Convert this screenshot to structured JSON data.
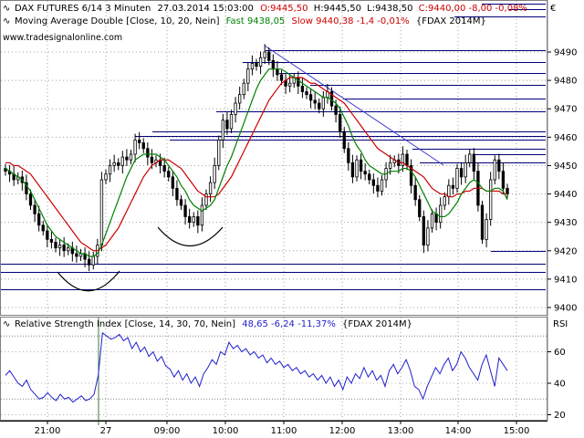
{
  "main": {
    "line1": {
      "symbol": "DAX FUTURES 6/14 3 Minuten",
      "datetime": "27.03.2014 15:03:00",
      "open": "O:9445,50",
      "high": "H:9445,50",
      "low": "L:9438,50",
      "close_change": "C:9440,00 -8,00 -0,08%"
    },
    "line2": {
      "indicator": "Moving Average Double [Close, 10, 20, Nein]",
      "fast": "Fast 9438,05",
      "slow": "Slow 9440,38 -1,4 -0,01%",
      "instrument": "{FDAX 2014M}"
    },
    "watermark": "www.tradesignalonline.com",
    "currency": "€",
    "y_ticks": [
      "9490",
      "9480",
      "9470",
      "9460",
      "9450",
      "9440",
      "9430",
      "9420",
      "9410",
      "9400"
    ]
  },
  "rsi": {
    "label": "Relative Strength Index [Close, 14, 30, 70, Nein]",
    "value": "48,65 -6,24 -11,37%",
    "instrument": "{FDAX 2014M}",
    "axis_label": "RSI",
    "y_ticks": [
      "60",
      "40",
      "20"
    ]
  },
  "x_ticks": [
    "21:00",
    "27",
    "09:00",
    "10:00",
    "11:00",
    "12:00",
    "13:00",
    "14:00",
    "15:00"
  ],
  "colors": {
    "fast": "#008000",
    "slow": "#cc0000",
    "rsi": "#1f1fcc",
    "lines": "#00007a",
    "close_change": "#cc0000",
    "value_blue": "#1f1fcc"
  },
  "chart_data": [
    {
      "type": "candlestick",
      "title": "DAX FUTURES 6/14 3 Minuten",
      "ylim": [
        9395,
        9497
      ],
      "series": [
        {
          "name": "Close",
          "values": [
            9448,
            9447,
            9445,
            9446,
            9444,
            9440,
            9436,
            9433,
            9429,
            9427,
            9424,
            9423,
            9421,
            9422,
            9420,
            9421,
            9419,
            9418,
            9419,
            9417,
            9415,
            9418,
            9422,
            9445,
            9447,
            9450,
            9451,
            9450,
            9453,
            9452,
            9454,
            9459,
            9458,
            9456,
            9453,
            9451,
            9452,
            9450,
            9448,
            9446,
            9442,
            9438,
            9436,
            9432,
            9430,
            9432,
            9429,
            9436,
            9440,
            9444,
            9450,
            9459,
            9466,
            9463,
            9468,
            9472,
            9475,
            9479,
            9484,
            9486,
            9485,
            9488,
            9490,
            9487,
            9484,
            9482,
            9480,
            9478,
            9479,
            9481,
            9478,
            9476,
            9475,
            9473,
            9472,
            9470,
            9474,
            9476,
            9471,
            9468,
            9462,
            9456,
            9451,
            9446,
            9452,
            9448,
            9447,
            9445,
            9443,
            9441,
            9445,
            9449,
            9451,
            9452,
            9450,
            9454,
            9450,
            9443,
            9438,
            9432,
            9422,
            9428,
            9433,
            9430,
            9436,
            9439,
            9443,
            9442,
            9449,
            9446,
            9451,
            9454,
            9448,
            9436,
            9424,
            9431,
            9445,
            9452,
            9448,
            9442,
            9440
          ]
        },
        {
          "name": "Fast",
          "values": [
            9449,
            9448,
            9447,
            9446,
            9445,
            9443,
            9441,
            9438,
            9435,
            9432,
            9429,
            9427,
            9425,
            9424,
            9423,
            9422,
            9421,
            9420,
            9419,
            9419,
            9418,
            9418,
            9419,
            9422,
            9426,
            9430,
            9434,
            9438,
            9442,
            9446,
            9449,
            9452,
            9453,
            9454,
            9454,
            9454,
            9454,
            9453,
            9452,
            9450,
            9448,
            9446,
            9443,
            9441,
            9438,
            9436,
            9435,
            9434,
            9435,
            9436,
            9438,
            9442,
            9446,
            9450,
            9453,
            9457,
            9461,
            9465,
            9469,
            9473,
            9477,
            9480,
            9482,
            9484,
            9484,
            9484,
            9484,
            9483,
            9482,
            9481,
            9480,
            9479,
            9478,
            9477,
            9476,
            9475,
            9474,
            9474,
            9473,
            9472,
            9470,
            9467,
            9464,
            9460,
            9457,
            9455,
            9452,
            9450,
            9449,
            9448,
            9447,
            9447,
            9448,
            9448,
            9448,
            9449,
            9449,
            9448,
            9446,
            9443,
            9440,
            9437,
            9434,
            9433,
            9432,
            9432,
            9433,
            9435,
            9437,
            9440,
            9442,
            9444,
            9445,
            9444,
            9442,
            9441,
            9441,
            9442,
            9442,
            9441,
            9438
          ]
        },
        {
          "name": "Slow",
          "values": [
            9451,
            9451,
            9450,
            9450,
            9449,
            9448,
            9447,
            9445,
            9443,
            9441,
            9439,
            9437,
            9435,
            9433,
            9431,
            9429,
            9427,
            9425,
            9423,
            9422,
            9421,
            9420,
            9420,
            9421,
            9422,
            9424,
            9426,
            9428,
            9431,
            9434,
            9437,
            9440,
            9443,
            9446,
            9448,
            9450,
            9451,
            9452,
            9452,
            9452,
            9451,
            9450,
            9449,
            9447,
            9445,
            9443,
            9441,
            9440,
            9439,
            9439,
            9439,
            9440,
            9442,
            9444,
            9446,
            9449,
            9452,
            9455,
            9458,
            9461,
            9464,
            9467,
            9470,
            9473,
            9475,
            9477,
            9479,
            9480,
            9481,
            9481,
            9481,
            9481,
            9480,
            9479,
            9479,
            9478,
            9477,
            9476,
            9475,
            9474,
            9473,
            9472,
            9470,
            9468,
            9466,
            9464,
            9462,
            9460,
            9458,
            9456,
            9455,
            9454,
            9453,
            9452,
            9451,
            9451,
            9450,
            9449,
            9448,
            9447,
            9446,
            9444,
            9442,
            9441,
            9440,
            9440,
            9439,
            9439,
            9440,
            9440,
            9441,
            9441,
            9442,
            9442,
            9442,
            9441,
            9441,
            9441,
            9441,
            9440,
            9440
          ]
        }
      ]
    },
    {
      "type": "line",
      "title": "Relative Strength Index [Close, 14, 30, 70, Nein]",
      "ylim": [
        15,
        76
      ],
      "series": [
        {
          "name": "RSI",
          "values": [
            45,
            48,
            44,
            40,
            38,
            42,
            36,
            33,
            30,
            31,
            34,
            31,
            29,
            33,
            30,
            31,
            28,
            30,
            32,
            29,
            30,
            33,
            45,
            72,
            70,
            68,
            69,
            71,
            67,
            69,
            62,
            66,
            60,
            63,
            57,
            60,
            54,
            57,
            51,
            49,
            44,
            48,
            42,
            46,
            40,
            44,
            38,
            46,
            50,
            55,
            52,
            60,
            58,
            66,
            62,
            64,
            60,
            62,
            58,
            60,
            56,
            58,
            53,
            56,
            52,
            54,
            50,
            52,
            48,
            50,
            46,
            48,
            44,
            46,
            42,
            45,
            40,
            44,
            38,
            42,
            36,
            44,
            40,
            46,
            43,
            50,
            44,
            48,
            42,
            45,
            38,
            48,
            52,
            46,
            50,
            55,
            48,
            38,
            36,
            30,
            38,
            44,
            50,
            46,
            52,
            56,
            48,
            52,
            60,
            56,
            50,
            46,
            42,
            52,
            58,
            48,
            38,
            56,
            52,
            48
          ]
        }
      ]
    }
  ]
}
